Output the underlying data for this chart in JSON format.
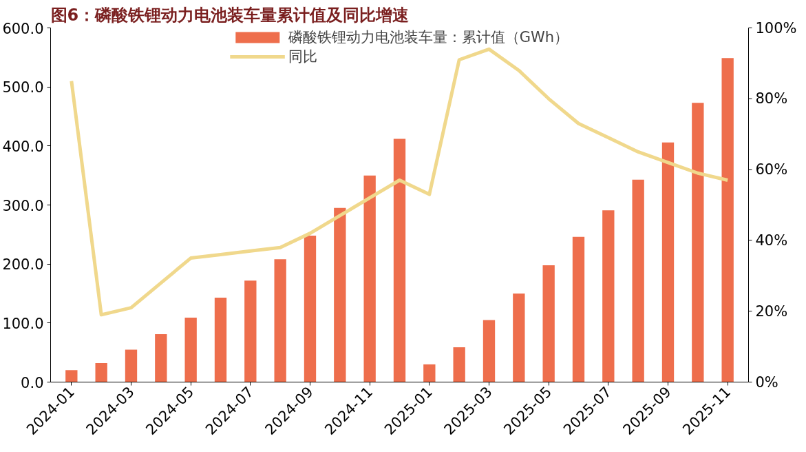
{
  "chart_data": {
    "type": "bar",
    "title": "图6：磷酸铁锂动力电池装车量累计值及同比增速",
    "categories": [
      "2024-01",
      null,
      "2024-03",
      null,
      "2024-05",
      null,
      "2024-07",
      null,
      "2024-09",
      null,
      "2024-11",
      null,
      "2025-01",
      null,
      "2025-03",
      null,
      "2025-05",
      null,
      "2025-07",
      null,
      "2025-09",
      null,
      "2025-11"
    ],
    "series": [
      {
        "name": "磷酸铁锂动力电池装车量：累计值（GWh）",
        "color": "#ee6e4c",
        "values": [
          20,
          32,
          55,
          81,
          109,
          143,
          172,
          208,
          248,
          295,
          350,
          412,
          30,
          59,
          105,
          150,
          198,
          246,
          291,
          343,
          406,
          473,
          549
        ]
      },
      {
        "name": "同比",
        "type": "line",
        "axis": "y2",
        "color": "#f0d88c",
        "values": [
          85,
          19,
          21,
          28,
          35,
          36,
          37,
          38,
          42,
          47,
          52,
          57,
          53,
          91,
          94,
          88,
          80,
          73,
          69,
          65,
          62,
          59,
          57
        ]
      }
    ],
    "ylim": [
      0,
      600
    ],
    "yticks": [
      {
        "value": 0,
        "label": "0.0"
      },
      {
        "value": 100,
        "label": "100.0"
      },
      {
        "value": 200,
        "label": "200.0"
      },
      {
        "value": 300,
        "label": "300.0"
      },
      {
        "value": 400,
        "label": "400.0"
      },
      {
        "value": 500,
        "label": "500.0"
      },
      {
        "value": 600,
        "label": "600.0"
      }
    ],
    "y2lim": [
      0,
      100
    ],
    "y2ticks": [
      {
        "value": 0,
        "label": "0%"
      },
      {
        "value": 20,
        "label": "20%"
      },
      {
        "value": 40,
        "label": "40%"
      },
      {
        "value": 60,
        "label": "60%"
      },
      {
        "value": 80,
        "label": "80%"
      },
      {
        "value": 100,
        "label": "100%"
      }
    ],
    "legend": "top"
  }
}
